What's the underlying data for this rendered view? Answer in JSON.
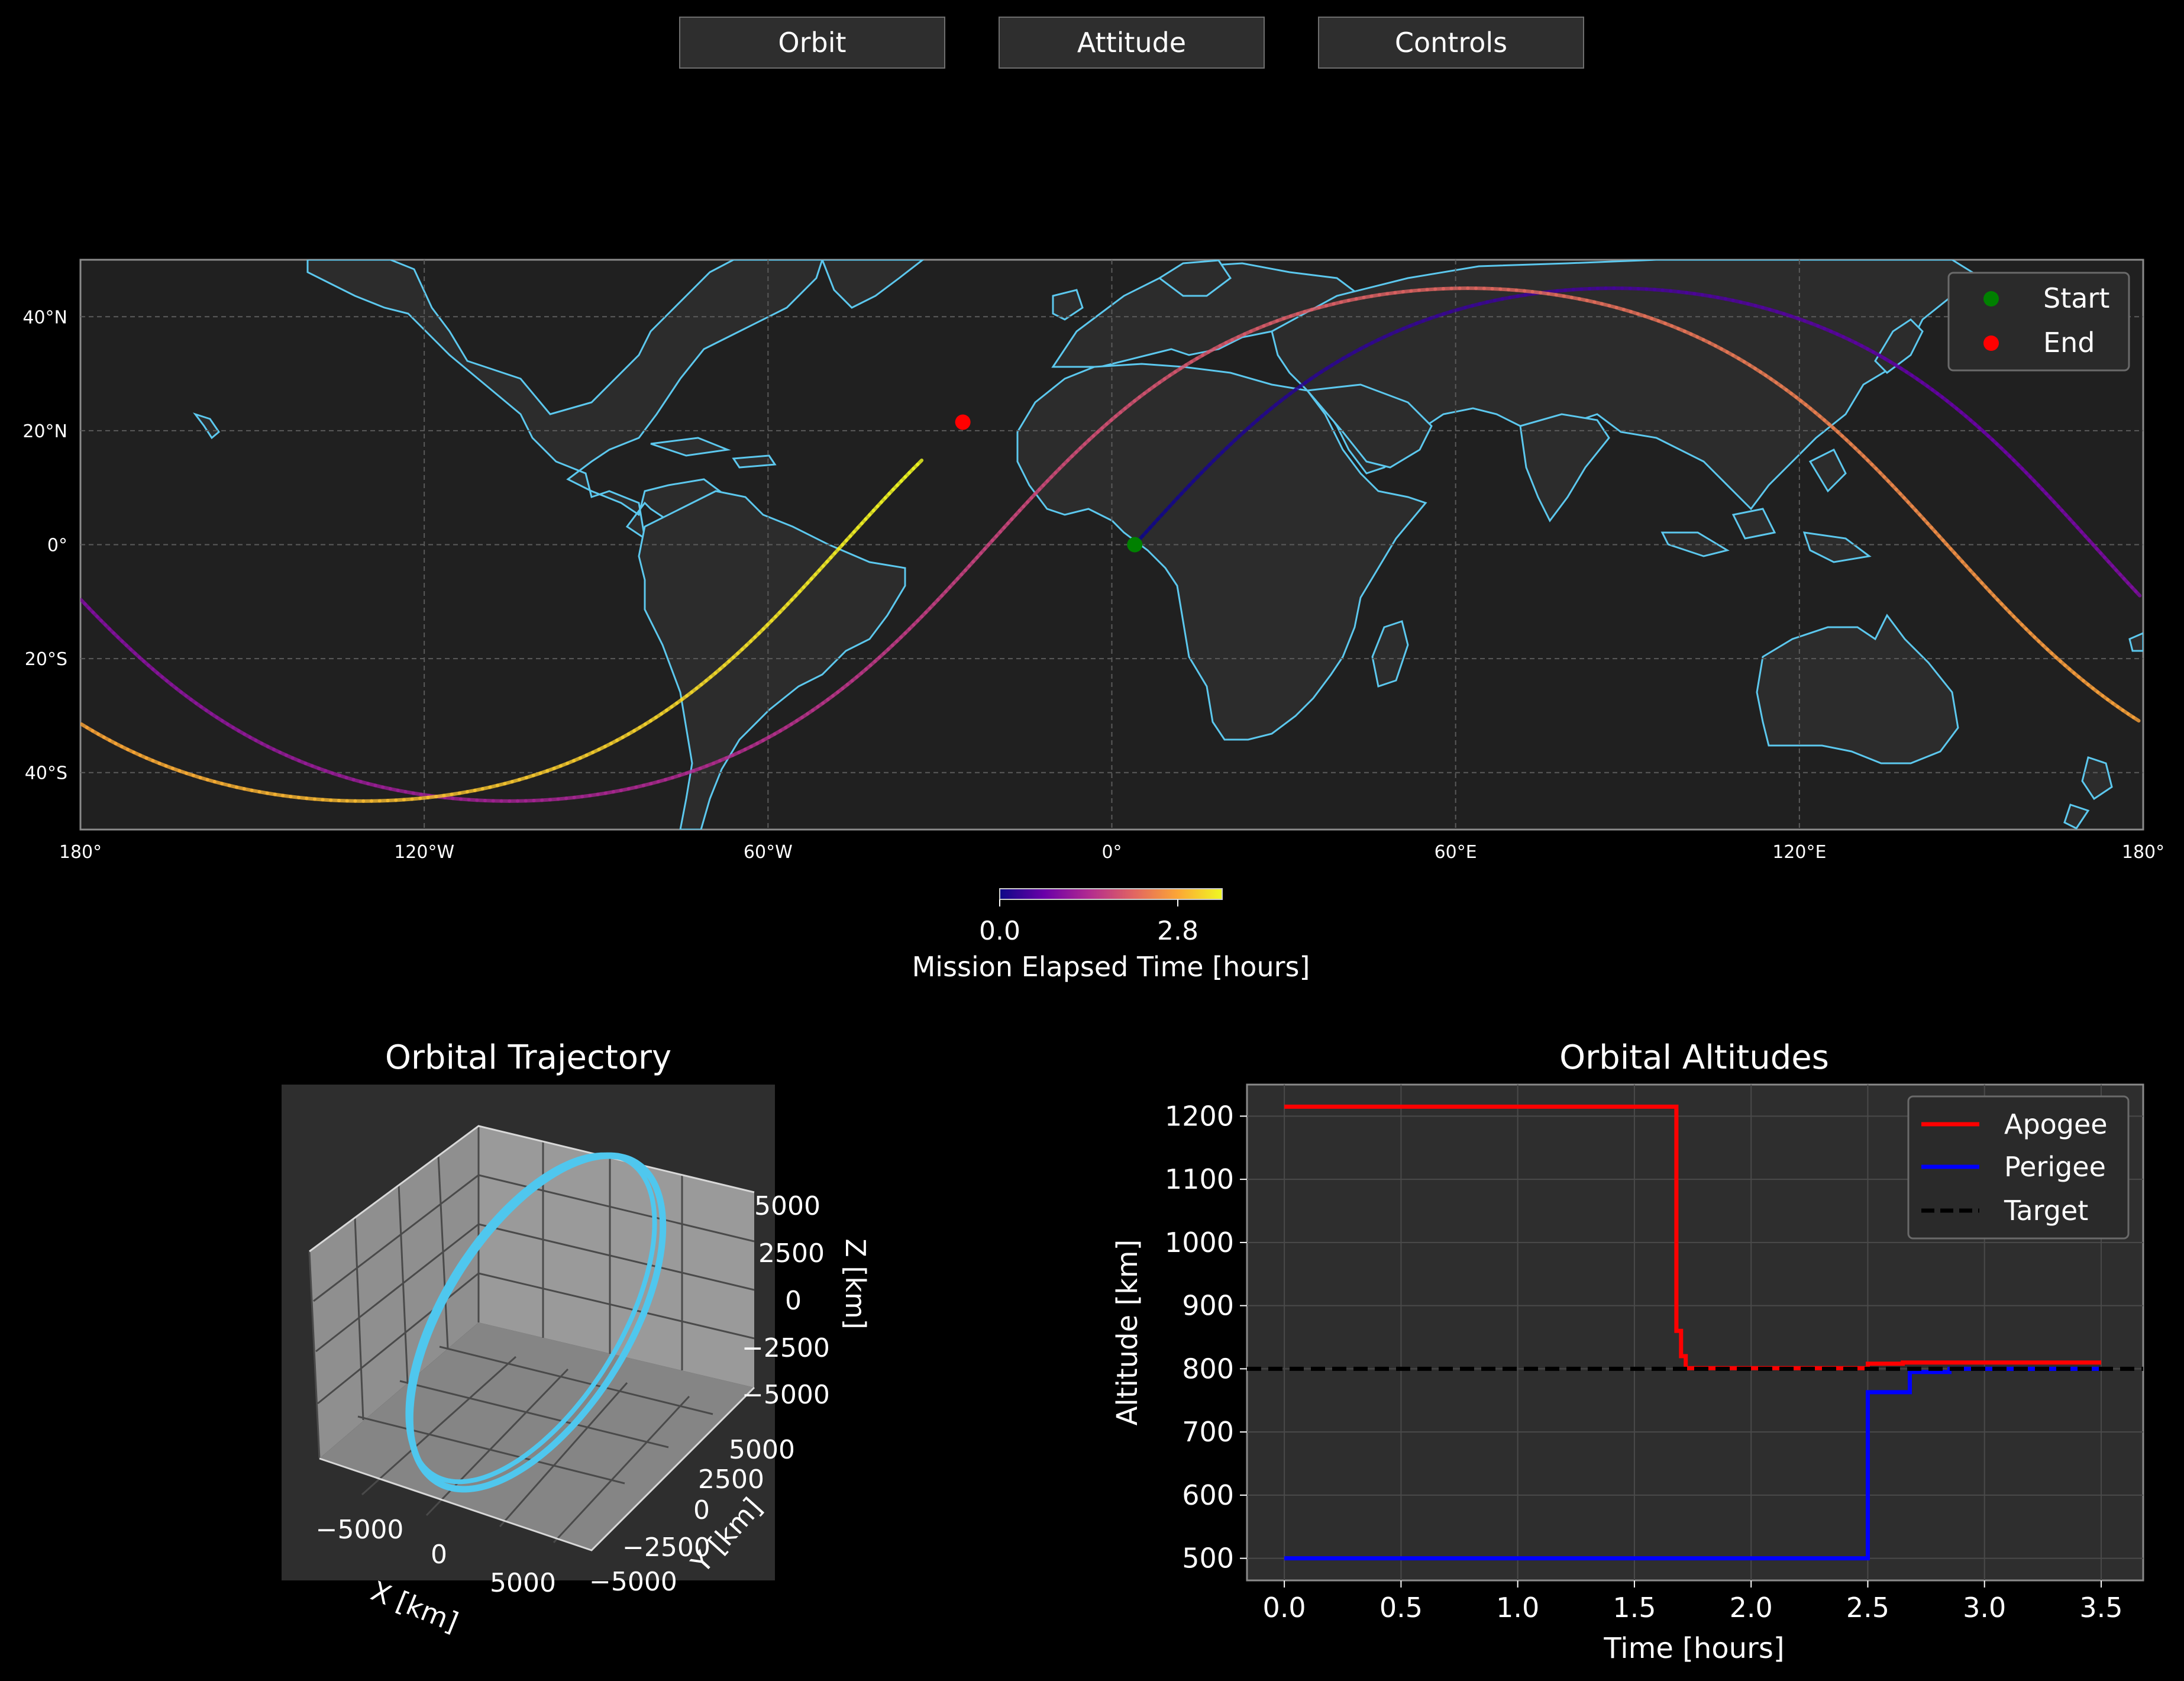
{
  "tabs": [
    {
      "label": "Orbit"
    },
    {
      "label": "Attitude"
    },
    {
      "label": "Controls"
    }
  ],
  "colors": {
    "background": "#000000",
    "panel": "#2e2e2e",
    "map_panel": "#202020",
    "coastline": "#5cc8ee",
    "grid": "#5a5a5a",
    "start_marker": "#008000",
    "end_marker": "#ff0000",
    "orbit_3d": "#4fc7ee",
    "apogee": "#ff0000",
    "perigee": "#0000ff",
    "target": "#000000",
    "colormap": [
      "#0d0887",
      "#6a00a8",
      "#b12a90",
      "#e16462",
      "#fca636",
      "#f0f921"
    ]
  },
  "chart_data": [
    {
      "type": "line",
      "name": "ground-track",
      "projection": "plate-carree",
      "xlim": [
        -180,
        180
      ],
      "ylim": [
        -50,
        50
      ],
      "xticks": [
        -180,
        -120,
        -60,
        0,
        60,
        120,
        180
      ],
      "xtick_labels": [
        "180°",
        "120°W",
        "60°W",
        "0°",
        "60°E",
        "120°E",
        "180°"
      ],
      "yticks": [
        40,
        20,
        0,
        -20,
        -40
      ],
      "ytick_labels": [
        "40°N",
        "20°N",
        "0°",
        "20°S",
        "40°S"
      ],
      "grid": true,
      "inclination_deg": 45,
      "track": {
        "t_start": 0.0,
        "t_end": 3.5,
        "start_lon": 4.0,
        "start_lat": 0.0,
        "end_lon": -26.0,
        "end_lat": 21.5,
        "orbit_period_hours": 1.7,
        "earth_rotation_deg_per_hour": 15
      },
      "legend": {
        "position": "top-right",
        "entries": [
          "Start",
          "End"
        ]
      },
      "colorbar": {
        "min": 0.0,
        "max": 3.5,
        "ticks": [
          0.0,
          2.8
        ],
        "tick_labels": [
          "0.0",
          "2.8"
        ],
        "label": "Mission Elapsed Time [hours]",
        "colormap": "plasma"
      }
    },
    {
      "type": "line",
      "name": "orbital-trajectory-3d",
      "title": "Orbital Trajectory",
      "xlabel": "X [km]",
      "ylabel": "Y [km]",
      "zlabel": "Z [km]",
      "xlim": [
        -7000,
        7000
      ],
      "ylim": [
        -7000,
        7000
      ],
      "zlim": [
        -5000,
        5000
      ],
      "x_tick_labels": [
        "−5000",
        "0",
        "5000"
      ],
      "y_tick_labels": [
        "5000",
        "2500",
        "0",
        "−2500",
        "−5000"
      ],
      "z_tick_labels": [
        "5000",
        "2500",
        "0",
        "−2500",
        "−5000"
      ],
      "orbit_radius_km": 7000,
      "inclination_deg": 45
    },
    {
      "type": "line",
      "name": "orbital-altitudes",
      "title": "Orbital Altitudes",
      "xlabel": "Time [hours]",
      "ylabel": "Altitude [km]",
      "xlim": [
        -0.16,
        3.68
      ],
      "ylim": [
        465,
        1250
      ],
      "xticks": [
        0.0,
        0.5,
        1.0,
        1.5,
        2.0,
        2.5,
        3.0,
        3.5
      ],
      "xtick_labels": [
        "0.0",
        "0.5",
        "1.0",
        "1.5",
        "2.0",
        "2.5",
        "3.0",
        "3.5"
      ],
      "yticks": [
        500,
        600,
        700,
        800,
        900,
        1000,
        1100,
        1200
      ],
      "ytick_labels": [
        "500",
        "600",
        "700",
        "800",
        "900",
        "1000",
        "1100",
        "1200"
      ],
      "grid": true,
      "legend": {
        "position": "top-right"
      },
      "series": [
        {
          "name": "Apogee",
          "style": "solid",
          "x": [
            0.0,
            1.68,
            1.68,
            1.7,
            1.7,
            1.72,
            1.72,
            2.5,
            2.5,
            2.65,
            2.65,
            3.5
          ],
          "y": [
            1215,
            1215,
            860,
            860,
            820,
            820,
            801,
            801,
            808,
            808,
            810,
            810
          ]
        },
        {
          "name": "Perigee",
          "style": "solid",
          "x": [
            0.0,
            2.5,
            2.5,
            2.68,
            2.68,
            2.85,
            2.85,
            3.5
          ],
          "y": [
            500,
            500,
            763,
            763,
            795,
            795,
            800,
            800
          ]
        },
        {
          "name": "Target",
          "style": "dashed",
          "x": [
            -0.16,
            3.68
          ],
          "y": [
            800,
            800
          ]
        }
      ]
    }
  ]
}
